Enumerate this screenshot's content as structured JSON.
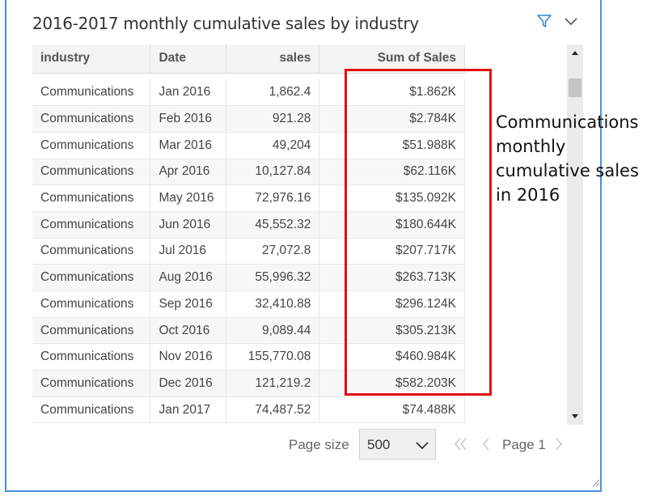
{
  "title": "2016-2017 monthly cumulative sales by industry",
  "icons": {
    "filter": "filter-icon",
    "more": "chevron-down-icon"
  },
  "table": {
    "headers": {
      "industry": "industry",
      "date": "Date",
      "sales": "sales",
      "sum": "Sum of Sales"
    },
    "rows": [
      {
        "industry": "Communications",
        "date": "Jan 2016",
        "sales": "1,862.4",
        "sum": "$1.862K"
      },
      {
        "industry": "Communications",
        "date": "Feb 2016",
        "sales": "921.28",
        "sum": "$2.784K"
      },
      {
        "industry": "Communications",
        "date": "Mar 2016",
        "sales": "49,204",
        "sum": "$51.988K"
      },
      {
        "industry": "Communications",
        "date": "Apr 2016",
        "sales": "10,127.84",
        "sum": "$62.116K"
      },
      {
        "industry": "Communications",
        "date": "May 2016",
        "sales": "72,976.16",
        "sum": "$135.092K"
      },
      {
        "industry": "Communications",
        "date": "Jun 2016",
        "sales": "45,552.32",
        "sum": "$180.644K"
      },
      {
        "industry": "Communications",
        "date": "Jul 2016",
        "sales": "27,072.8",
        "sum": "$207.717K"
      },
      {
        "industry": "Communications",
        "date": "Aug 2016",
        "sales": "55,996.32",
        "sum": "$263.713K"
      },
      {
        "industry": "Communications",
        "date": "Sep 2016",
        "sales": "32,410.88",
        "sum": "$296.124K"
      },
      {
        "industry": "Communications",
        "date": "Oct 2016",
        "sales": "9,089.44",
        "sum": "$305.213K"
      },
      {
        "industry": "Communications",
        "date": "Nov 2016",
        "sales": "155,770.08",
        "sum": "$460.984K"
      },
      {
        "industry": "Communications",
        "date": "Dec 2016",
        "sales": "121,219.2",
        "sum": "$582.203K"
      },
      {
        "industry": "Communications",
        "date": "Jan 2017",
        "sales": "74,487.52",
        "sum": "$74.488K"
      }
    ]
  },
  "pager": {
    "page_size_label": "Page size",
    "page_size_value": "500",
    "page_label": "Page 1"
  },
  "annotation": {
    "lines": [
      "Communications",
      "monthly",
      "cumulative sales",
      "in 2016"
    ],
    "box_color": "#e01010"
  },
  "colors": {
    "accent": "#4a90d9",
    "highlight": "#e01010"
  }
}
